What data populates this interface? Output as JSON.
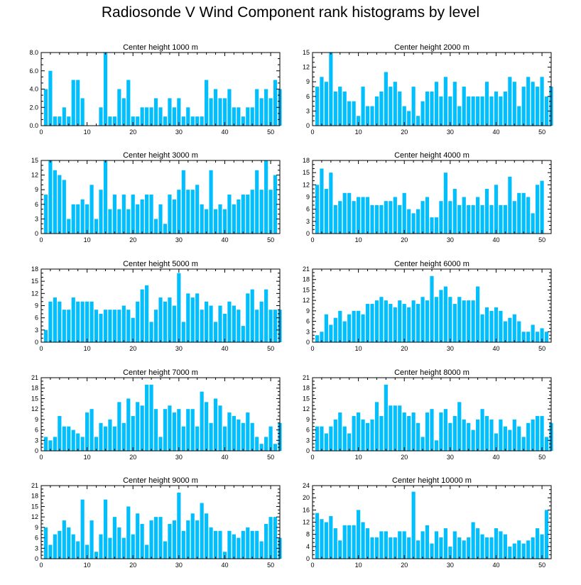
{
  "chart_data": {
    "title": "Radiosonde V Wind Component rank histograms by level",
    "type": "bar",
    "bar_color": "#00bfff",
    "x_ticks": [
      0,
      10,
      20,
      30,
      40,
      50
    ],
    "xlim": [
      0,
      52
    ],
    "panels": [
      {
        "title": "Center height 1000 m",
        "ylim": [
          0,
          8
        ],
        "y_ticks": [
          "0.0",
          "2.0",
          "4.0",
          "6.0",
          "8.0"
        ],
        "values": [
          4,
          6,
          1,
          1,
          2,
          1,
          5,
          5,
          3,
          0,
          0,
          0,
          2,
          8,
          1,
          1,
          4,
          3,
          5,
          1,
          1,
          2,
          2,
          2,
          3,
          2,
          1,
          3,
          2,
          3,
          1,
          2,
          1,
          1,
          1,
          5,
          3,
          4,
          3,
          3,
          4,
          2,
          2,
          1,
          2,
          2,
          4,
          3,
          4,
          3,
          5,
          4
        ]
      },
      {
        "title": "Center height 2000 m",
        "ylim": [
          0,
          15
        ],
        "y_ticks": [
          "0",
          "3",
          "6",
          "9",
          "12",
          "15"
        ],
        "values": [
          8,
          10,
          9,
          15,
          7,
          8,
          7,
          5,
          5,
          2,
          8,
          4,
          4,
          6,
          7,
          11,
          8,
          9,
          7,
          4,
          3,
          8,
          2,
          5,
          7,
          7,
          9,
          6,
          10,
          6,
          9,
          4,
          8,
          6,
          6,
          6,
          6,
          9,
          6,
          7,
          6,
          7,
          10,
          9,
          4,
          8,
          10,
          9,
          8,
          10,
          6,
          8
        ]
      },
      {
        "title": "Center height 3000 m",
        "ylim": [
          0,
          15
        ],
        "y_ticks": [
          "0",
          "3",
          "6",
          "9",
          "12",
          "15"
        ],
        "values": [
          8,
          15,
          13,
          12,
          11,
          3,
          6,
          6,
          7,
          6,
          10,
          3,
          9,
          15,
          5,
          8,
          5,
          8,
          5,
          8,
          6,
          7,
          8,
          8,
          3,
          6,
          2,
          8,
          7,
          9,
          13,
          9,
          9,
          10,
          6,
          5,
          13,
          5,
          6,
          5,
          8,
          6,
          7,
          8,
          8,
          9,
          13,
          9,
          15,
          9,
          12
        ]
      },
      {
        "title": "Center height 4000 m",
        "ylim": [
          0,
          18
        ],
        "y_ticks": [
          "0",
          "3",
          "6",
          "9",
          "12",
          "15",
          "18"
        ],
        "values": [
          12,
          16,
          11,
          15,
          7,
          8,
          10,
          10,
          8,
          9,
          9,
          9,
          7,
          7,
          7,
          8,
          8,
          9,
          7,
          10,
          6,
          5,
          6,
          8,
          9,
          4,
          4,
          8,
          15,
          8,
          11,
          7,
          9,
          7,
          7,
          9,
          7,
          11,
          7,
          12,
          7,
          7,
          14,
          8,
          10,
          10,
          9,
          5,
          12,
          13
        ]
      },
      {
        "title": "Center height 5000 m",
        "ylim": [
          0,
          18
        ],
        "y_ticks": [
          "0",
          "3",
          "6",
          "9",
          "12",
          "15",
          "18"
        ],
        "values": [
          3,
          10,
          11,
          10,
          8,
          8,
          11,
          10,
          10,
          10,
          10,
          8,
          7,
          8,
          8,
          8,
          8,
          9,
          8,
          6,
          10,
          13,
          14,
          5,
          8,
          11,
          10,
          11,
          9,
          17,
          5,
          12,
          11,
          12,
          8,
          10,
          9,
          5,
          9,
          7,
          10,
          9,
          8,
          4,
          12,
          13,
          8,
          10,
          13,
          8,
          8,
          8
        ]
      },
      {
        "title": "Center height 6000 m",
        "ylim": [
          0,
          21
        ],
        "y_ticks": [
          "0",
          "3",
          "6",
          "9",
          "12",
          "15",
          "18",
          "21"
        ],
        "values": [
          2,
          3,
          8,
          5,
          7,
          9,
          6,
          8,
          9,
          9,
          8,
          11,
          11,
          12,
          13,
          12,
          11,
          10,
          12,
          11,
          10,
          12,
          11,
          13,
          12,
          19,
          13,
          15,
          16,
          13,
          11,
          13,
          12,
          12,
          12,
          16,
          8,
          10,
          9,
          10,
          9,
          6,
          7,
          8,
          6,
          3,
          3,
          5,
          3,
          4,
          3
        ]
      },
      {
        "title": "Center height 7000 m",
        "ylim": [
          0,
          21
        ],
        "y_ticks": [
          "0",
          "3",
          "6",
          "9",
          "12",
          "15",
          "18",
          "21"
        ],
        "values": [
          4,
          3,
          4,
          10,
          7,
          7,
          6,
          5,
          4,
          11,
          12,
          4,
          8,
          7,
          9,
          7,
          14,
          8,
          15,
          10,
          14,
          13,
          19,
          19,
          12,
          4,
          12,
          13,
          11,
          12,
          7,
          12,
          12,
          7,
          17,
          14,
          8,
          15,
          13,
          7,
          11,
          10,
          9,
          8,
          11,
          8,
          4,
          2,
          4,
          7,
          2,
          8
        ]
      },
      {
        "title": "Center height 8000 m",
        "ylim": [
          0,
          21
        ],
        "y_ticks": [
          "0",
          "3",
          "6",
          "9",
          "12",
          "15",
          "18",
          "21"
        ],
        "values": [
          7,
          7,
          5,
          7,
          9,
          11,
          7,
          5,
          10,
          11,
          9,
          8,
          9,
          14,
          10,
          19,
          13,
          13,
          13,
          11,
          10,
          11,
          8,
          4,
          11,
          12,
          3,
          11,
          12,
          8,
          10,
          14,
          9,
          8,
          6,
          9,
          12,
          10,
          9,
          5,
          9,
          7,
          6,
          9,
          7,
          4,
          8,
          9,
          10,
          10,
          4,
          8
        ]
      },
      {
        "title": "Center height 9000 m",
        "ylim": [
          0,
          21
        ],
        "y_ticks": [
          "0",
          "3",
          "6",
          "9",
          "12",
          "15",
          "18",
          "21"
        ],
        "values": [
          9,
          4,
          7,
          8,
          11,
          9,
          7,
          5,
          17,
          4,
          11,
          2,
          7,
          17,
          6,
          12,
          9,
          6,
          15,
          7,
          13,
          10,
          4,
          11,
          12,
          12,
          5,
          10,
          11,
          19,
          8,
          11,
          13,
          11,
          16,
          13,
          9,
          8,
          8,
          2,
          8,
          7,
          6,
          8,
          9,
          8,
          8,
          5,
          10,
          12,
          12,
          6
        ]
      },
      {
        "title": "Center height 10000 m",
        "ylim": [
          0,
          24
        ],
        "y_ticks": [
          "0",
          "4",
          "8",
          "12",
          "16",
          "20",
          "24"
        ],
        "values": [
          15,
          13,
          12,
          14,
          10,
          6,
          11,
          11,
          11,
          16,
          12,
          10,
          7,
          7,
          9,
          9,
          7,
          7,
          9,
          9,
          7,
          22,
          6,
          9,
          11,
          5,
          9,
          7,
          10,
          4,
          9,
          7,
          6,
          7,
          12,
          10,
          8,
          7,
          7,
          10,
          9,
          8,
          4,
          5,
          6,
          5,
          6,
          7,
          10,
          8,
          16
        ]
      }
    ]
  }
}
